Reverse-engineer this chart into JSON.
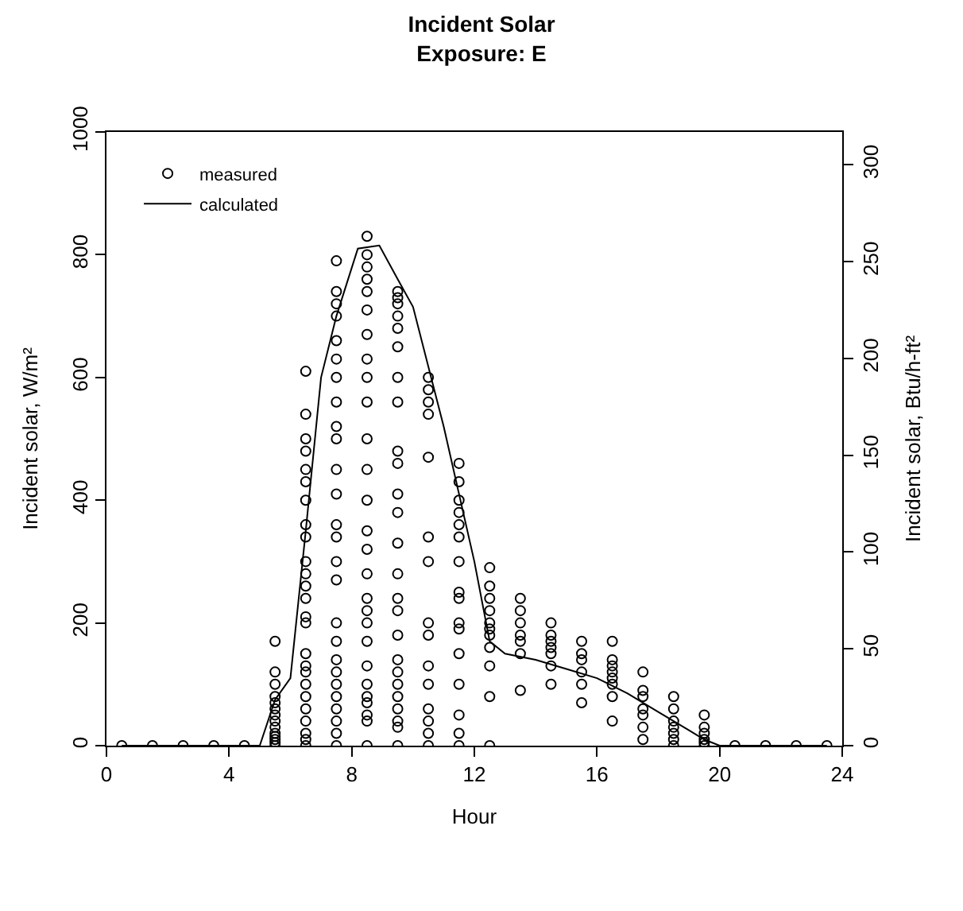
{
  "chart_data": {
    "type": "scatter",
    "title": "Incident Solar\nExposure: E",
    "xlabel": "Hour",
    "ylabel": "Incident solar, W/m²",
    "y2label": "Incident solar, Btu/h-ft²",
    "xlim": [
      0,
      24
    ],
    "xticks": [
      0,
      4,
      8,
      12,
      16,
      20,
      24
    ],
    "ylim": [
      0,
      1000
    ],
    "yticks": [
      0,
      200,
      400,
      600,
      800,
      1000
    ],
    "y2lim": [
      0,
      317
    ],
    "y2ticks": [
      0,
      50,
      100,
      150,
      200,
      250,
      300
    ],
    "legend": "top left",
    "marker": "circle",
    "series": [
      {
        "name": "measured",
        "color": "#000000",
        "x": [
          0.5,
          1.5,
          2.5,
          3.5,
          4.5,
          5.5,
          5.5,
          5.5,
          5.5,
          5.5,
          5.5,
          5.5,
          5.5,
          5.5,
          5.5,
          5.5,
          5.5,
          5.5,
          5.5,
          6.5,
          6.5,
          6.5,
          6.5,
          6.5,
          6.5,
          6.5,
          6.5,
          6.5,
          6.5,
          6.5,
          6.5,
          6.5,
          6.5,
          6.5,
          6.5,
          6.5,
          6.5,
          6.5,
          6.5,
          6.5,
          6.5,
          6.5,
          6.5,
          6.5,
          7.5,
          7.5,
          7.5,
          7.5,
          7.5,
          7.5,
          7.5,
          7.5,
          7.5,
          7.5,
          7.5,
          7.5,
          7.5,
          7.5,
          7.5,
          7.5,
          7.5,
          7.5,
          7.5,
          7.5,
          7.5,
          7.5,
          7.5,
          7.5,
          7.5,
          7.5,
          8.5,
          8.5,
          8.5,
          8.5,
          8.5,
          8.5,
          8.5,
          8.5,
          8.5,
          8.5,
          8.5,
          8.5,
          8.5,
          8.5,
          8.5,
          8.5,
          8.5,
          8.5,
          8.5,
          8.5,
          8.5,
          8.5,
          8.5,
          8.5,
          8.5,
          8.5,
          8.5,
          9.5,
          9.5,
          9.5,
          9.5,
          9.5,
          9.5,
          9.5,
          9.5,
          9.5,
          9.5,
          9.5,
          9.5,
          9.5,
          9.5,
          9.5,
          9.5,
          9.5,
          9.5,
          9.5,
          9.5,
          9.5,
          9.5,
          9.5,
          9.5,
          9.5,
          10.5,
          10.5,
          10.5,
          10.5,
          10.5,
          10.5,
          10.5,
          10.5,
          10.5,
          10.5,
          10.5,
          10.5,
          10.5,
          10.5,
          10.5,
          11.5,
          11.5,
          11.5,
          11.5,
          11.5,
          11.5,
          11.5,
          11.5,
          11.5,
          11.5,
          11.5,
          11.5,
          11.5,
          11.5,
          11.5,
          11.5,
          12.5,
          12.5,
          12.5,
          12.5,
          12.5,
          12.5,
          12.5,
          12.5,
          12.5,
          12.5,
          12.5,
          13.5,
          13.5,
          13.5,
          13.5,
          13.5,
          13.5,
          13.5,
          14.5,
          14.5,
          14.5,
          14.5,
          14.5,
          14.5,
          14.5,
          15.5,
          15.5,
          15.5,
          15.5,
          15.5,
          15.5,
          16.5,
          16.5,
          16.5,
          16.5,
          16.5,
          16.5,
          16.5,
          16.5,
          17.5,
          17.5,
          17.5,
          17.5,
          17.5,
          17.5,
          17.5,
          18.5,
          18.5,
          18.5,
          18.5,
          18.5,
          18.5,
          18.5,
          19.5,
          19.5,
          19.5,
          19.5,
          19.5,
          19.5,
          20.5,
          21.5,
          22.5,
          23.5
        ],
        "values": [
          0,
          0,
          0,
          0,
          0,
          0,
          5,
          10,
          15,
          20,
          30,
          40,
          50,
          60,
          70,
          80,
          100,
          120,
          170,
          0,
          10,
          20,
          40,
          60,
          80,
          100,
          120,
          130,
          150,
          200,
          210,
          240,
          260,
          280,
          300,
          340,
          360,
          400,
          430,
          450,
          480,
          500,
          540,
          610,
          0,
          20,
          40,
          60,
          80,
          100,
          120,
          140,
          170,
          200,
          270,
          300,
          340,
          360,
          410,
          450,
          500,
          520,
          560,
          600,
          630,
          660,
          700,
          720,
          740,
          790,
          0,
          40,
          50,
          70,
          80,
          100,
          130,
          170,
          200,
          220,
          240,
          280,
          320,
          350,
          400,
          450,
          500,
          560,
          600,
          630,
          670,
          710,
          740,
          760,
          780,
          800,
          830,
          0,
          30,
          40,
          60,
          80,
          100,
          120,
          140,
          180,
          220,
          240,
          280,
          330,
          380,
          410,
          460,
          480,
          560,
          600,
          650,
          680,
          700,
          720,
          730,
          740,
          0,
          20,
          40,
          60,
          100,
          130,
          180,
          200,
          300,
          340,
          470,
          540,
          560,
          580,
          600,
          0,
          20,
          50,
          100,
          150,
          190,
          200,
          240,
          250,
          300,
          340,
          360,
          380,
          400,
          430,
          460,
          0,
          80,
          130,
          160,
          180,
          190,
          200,
          220,
          240,
          260,
          290,
          90,
          150,
          170,
          180,
          200,
          220,
          240,
          100,
          130,
          150,
          160,
          170,
          180,
          200,
          70,
          100,
          120,
          140,
          150,
          170,
          40,
          80,
          100,
          110,
          120,
          130,
          140,
          170,
          10,
          30,
          50,
          60,
          80,
          90,
          120,
          0,
          10,
          20,
          30,
          40,
          60,
          80,
          0,
          5,
          10,
          20,
          30,
          50,
          0,
          0,
          0,
          0
        ]
      },
      {
        "name": "calculated",
        "type": "line",
        "color": "#000000",
        "marker": "none",
        "line_style": "solid",
        "x": [
          0.5,
          1.5,
          2.5,
          3.5,
          4.5,
          5.0,
          5.5,
          6.0,
          6.5,
          7.0,
          7.5,
          8.2,
          8.9,
          9.5,
          10.0,
          11.0,
          12.0,
          12.5,
          13.0,
          14.0,
          15.0,
          16.0,
          17.0,
          18.0,
          19.0,
          19.5,
          20.0,
          20.5,
          21.5,
          22.5,
          23.5
        ],
        "values": [
          0,
          0,
          0,
          0,
          0,
          0,
          75,
          110,
          350,
          600,
          700,
          810,
          815,
          760,
          715,
          520,
          300,
          170,
          150,
          140,
          125,
          110,
          85,
          55,
          25,
          10,
          0,
          0,
          0,
          0,
          0
        ]
      }
    ]
  }
}
